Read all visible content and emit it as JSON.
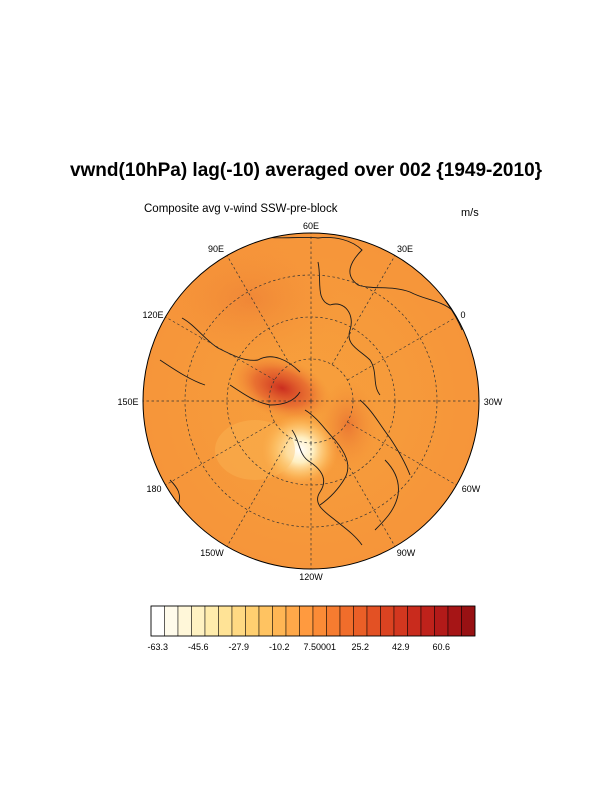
{
  "title": "vwnd(10hPa) lag(-10) averaged over 002 {1949-2010}",
  "subtitle": "Composite avg v-wind SSW-pre-block",
  "units": "m/s",
  "longitude_labels": [
    "60E",
    "30E",
    "0",
    "30W",
    "60W",
    "90W",
    "120W",
    "150W",
    "180",
    "150E",
    "120E",
    "90E"
  ],
  "colorbar": {
    "labels": [
      "-63.3",
      "-45.6",
      "-27.9",
      "-10.2",
      "7.50001",
      "25.2",
      "42.9",
      "60.6"
    ],
    "colors": [
      "#ffffff",
      "#fffbeb",
      "#fff7d9",
      "#fff2c2",
      "#ffecac",
      "#ffe396",
      "#ffd983",
      "#ffcf70",
      "#ffc361",
      "#ffb654",
      "#ffa849",
      "#ff9a3f",
      "#fb8b36",
      "#f67c30",
      "#f06d2b",
      "#ea5f27",
      "#e35124",
      "#db4321",
      "#d3371f",
      "#c92b1d",
      "#bf221b",
      "#b31a19",
      "#a61516",
      "#981113"
    ]
  },
  "map_colors": {
    "background": "#f9a13a",
    "warm_anomaly": "#d8432a",
    "cold_anomaly": "#fffbea",
    "coast": "#1a1a1a",
    "grid": "#333333"
  }
}
